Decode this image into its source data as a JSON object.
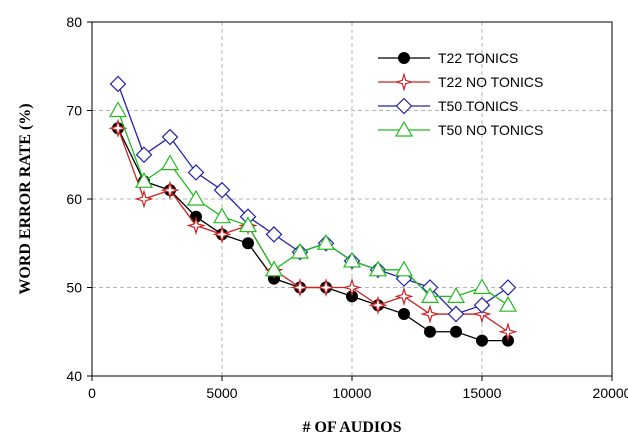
{
  "chart_data": {
    "type": "line",
    "xlabel": "# OF AUDIOS",
    "ylabel": "WORD ERROR RATE (%)",
    "xlim": [
      0,
      20000
    ],
    "ylim": [
      40,
      80
    ],
    "xticks": [
      0,
      5000,
      10000,
      15000,
      20000
    ],
    "yticks": [
      40,
      50,
      60,
      70,
      80
    ],
    "grid": true,
    "legend_position": "top-right",
    "x": [
      1000,
      2000,
      3000,
      4000,
      5000,
      6000,
      7000,
      8000,
      9000,
      10000,
      11000,
      12000,
      13000,
      14000,
      15000,
      16000
    ],
    "series": [
      {
        "name": "T22 TONICS",
        "color": "#000000",
        "marker": "circle",
        "values": [
          68,
          62,
          61,
          58,
          56,
          55,
          51,
          50,
          50,
          49,
          48,
          47,
          45,
          45,
          44,
          44
        ]
      },
      {
        "name": "T22 NO TONICS",
        "color": "#cc2222",
        "marker": "star",
        "values": [
          68,
          60,
          61,
          57,
          56,
          57,
          52,
          50,
          50,
          50,
          48,
          49,
          47,
          47,
          47,
          45
        ]
      },
      {
        "name": "T50 TONICS",
        "color": "#2222aa",
        "marker": "diamond",
        "values": [
          73,
          65,
          67,
          63,
          61,
          58,
          56,
          54,
          55,
          53,
          52,
          51,
          50,
          47,
          48,
          50
        ]
      },
      {
        "name": "T50 NO TONICS",
        "color": "#22bb22",
        "marker": "triangle",
        "values": [
          70,
          62,
          64,
          60,
          58,
          57,
          52,
          54,
          55,
          53,
          52,
          52,
          49,
          49,
          50,
          48
        ]
      }
    ]
  }
}
